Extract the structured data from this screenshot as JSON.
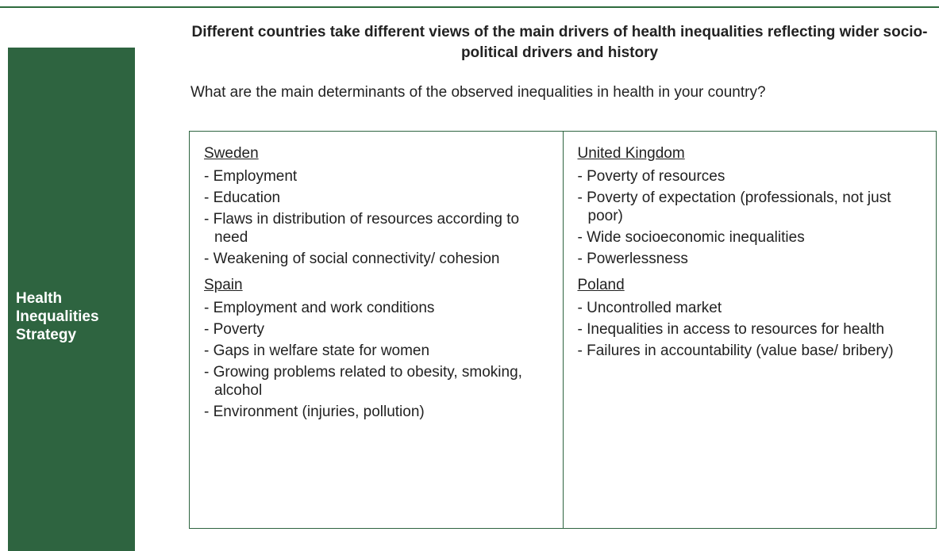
{
  "sidebar": {
    "label": "Health Inequalities Strategy"
  },
  "heading": "Different countries take different views of the main drivers of health inequalities reflecting wider socio-political drivers and history",
  "question": "What are the main determinants of the observed inequalities in health in your country?",
  "columns": [
    [
      {
        "country": "Sweden",
        "items": [
          "- Employment",
          "- Education",
          "- Flaws in distribution of resources according to need",
          "- Weakening of social connectivity/ cohesion"
        ]
      },
      {
        "country": "Spain",
        "items": [
          "- Employment and work conditions",
          "- Poverty",
          "- Gaps in welfare state for women",
          "- Growing problems related to obesity, smoking, alcohol",
          "- Environment (injuries, pollution)"
        ]
      }
    ],
    [
      {
        "country": "United Kingdom",
        "items": [
          "- Poverty of resources",
          "- Poverty of expectation (professionals, not just poor)",
          "- Wide socioeconomic inequalities",
          "- Powerlessness"
        ]
      },
      {
        "country": "Poland",
        "items": [
          "- Uncontrolled market",
          "- Inequalities in access to resources for health",
          "- Failures in accountability (value base/ bribery)"
        ]
      }
    ]
  ]
}
